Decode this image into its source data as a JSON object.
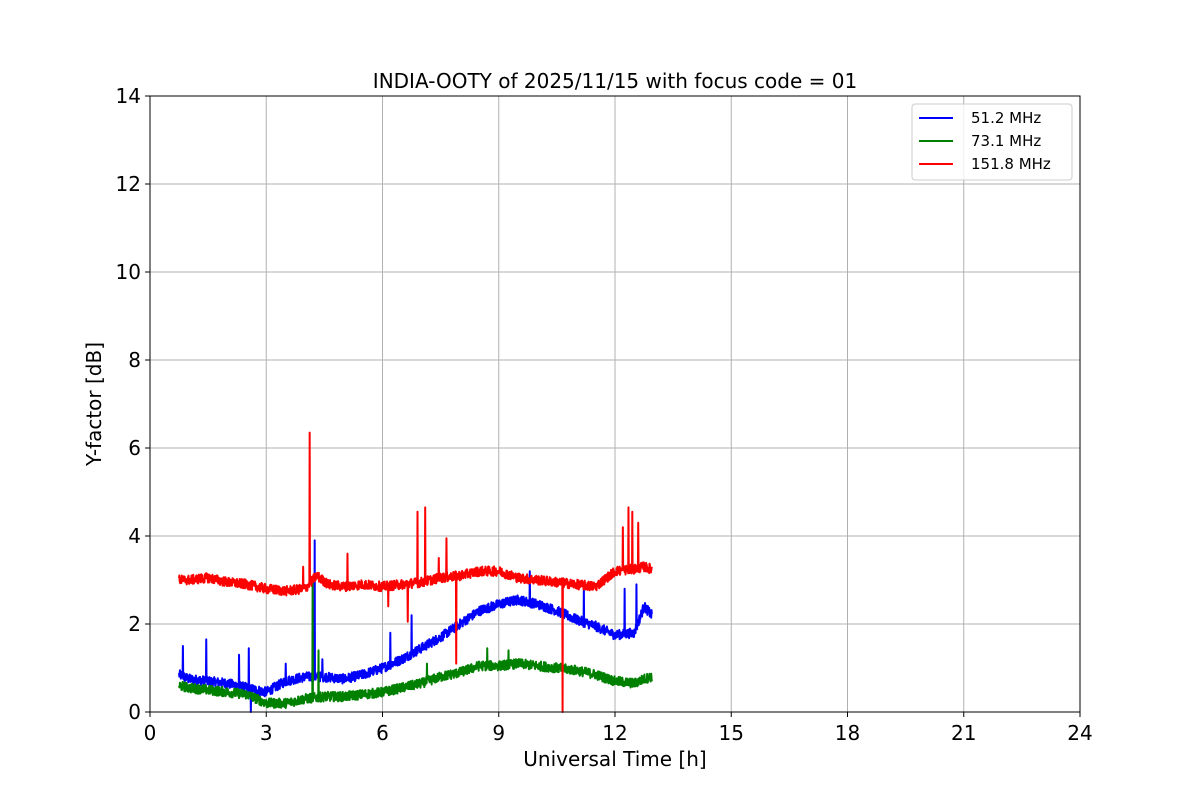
{
  "chart_data": {
    "type": "line",
    "title": "INDIA-OOTY of 2025/11/15 with focus code = 01",
    "xlabel": "Universal Time [h]",
    "ylabel": "Y-factor [dB]",
    "xlim": [
      0,
      24
    ],
    "ylim": [
      0,
      14
    ],
    "xticks": [
      0,
      3,
      6,
      9,
      12,
      15,
      18,
      21,
      24
    ],
    "yticks": [
      0,
      2,
      4,
      6,
      8,
      10,
      12,
      14
    ],
    "grid": true,
    "legend_position": "top-right",
    "series": [
      {
        "name": "51.2 MHz",
        "color": "#0000ff",
        "x": [
          0.75,
          1.0,
          1.5,
          2.0,
          2.5,
          3.0,
          3.5,
          4.0,
          4.5,
          5.0,
          5.5,
          6.0,
          6.5,
          7.0,
          7.5,
          8.0,
          8.5,
          9.0,
          9.5,
          10.0,
          10.5,
          11.0,
          11.5,
          12.0,
          12.5,
          12.75,
          12.95
        ],
        "values": [
          0.85,
          0.75,
          0.7,
          0.65,
          0.55,
          0.45,
          0.7,
          0.8,
          0.8,
          0.75,
          0.85,
          1.0,
          1.2,
          1.45,
          1.7,
          2.0,
          2.3,
          2.45,
          2.55,
          2.45,
          2.3,
          2.1,
          1.95,
          1.75,
          1.8,
          2.4,
          2.2
        ],
        "spikes": [
          {
            "x": 0.85,
            "y": 1.5
          },
          {
            "x": 1.45,
            "y": 1.65
          },
          {
            "x": 2.3,
            "y": 1.3
          },
          {
            "x": 2.55,
            "y": 1.45
          },
          {
            "x": 2.6,
            "y": 0.0
          },
          {
            "x": 3.5,
            "y": 1.1
          },
          {
            "x": 4.25,
            "y": 3.9
          },
          {
            "x": 4.45,
            "y": 1.2
          },
          {
            "x": 6.2,
            "y": 1.8
          },
          {
            "x": 6.75,
            "y": 2.2
          },
          {
            "x": 9.8,
            "y": 3.2
          },
          {
            "x": 11.2,
            "y": 2.8
          },
          {
            "x": 12.25,
            "y": 2.8
          },
          {
            "x": 12.55,
            "y": 2.9
          }
        ]
      },
      {
        "name": "73.1 MHz",
        "color": "#008000",
        "x": [
          0.75,
          1.0,
          1.5,
          2.0,
          2.5,
          3.0,
          3.5,
          4.0,
          4.5,
          5.0,
          5.5,
          6.0,
          6.5,
          7.0,
          7.5,
          8.0,
          8.5,
          9.0,
          9.5,
          10.0,
          10.5,
          11.0,
          11.5,
          12.0,
          12.5,
          12.75,
          12.95
        ],
        "values": [
          0.6,
          0.55,
          0.5,
          0.45,
          0.4,
          0.2,
          0.2,
          0.3,
          0.35,
          0.35,
          0.4,
          0.45,
          0.55,
          0.65,
          0.8,
          0.9,
          1.05,
          1.05,
          1.1,
          1.05,
          1.0,
          0.95,
          0.85,
          0.7,
          0.65,
          0.75,
          0.8
        ],
        "spikes": [
          {
            "x": 4.2,
            "y": 3.0
          },
          {
            "x": 4.35,
            "y": 1.4
          },
          {
            "x": 7.15,
            "y": 1.1
          },
          {
            "x": 8.7,
            "y": 1.45
          },
          {
            "x": 9.25,
            "y": 1.4
          }
        ]
      },
      {
        "name": "151.8 MHz",
        "color": "#ff0000",
        "x": [
          0.75,
          1.0,
          1.5,
          2.0,
          2.5,
          3.0,
          3.5,
          4.0,
          4.3,
          4.6,
          5.0,
          5.5,
          6.0,
          6.5,
          7.0,
          7.5,
          8.0,
          8.5,
          9.0,
          9.5,
          10.0,
          10.5,
          11.0,
          11.5,
          12.0,
          12.5,
          12.75,
          12.95
        ],
        "values": [
          3.0,
          3.0,
          3.05,
          2.95,
          2.9,
          2.8,
          2.75,
          2.8,
          3.1,
          2.9,
          2.85,
          2.9,
          2.85,
          2.9,
          2.95,
          3.05,
          3.1,
          3.2,
          3.2,
          3.05,
          3.0,
          2.95,
          2.9,
          2.85,
          3.2,
          3.25,
          3.3,
          3.25
        ],
        "spikes": [
          {
            "x": 3.95,
            "y": 3.3
          },
          {
            "x": 4.12,
            "y": 6.35
          },
          {
            "x": 5.1,
            "y": 3.6
          },
          {
            "x": 6.15,
            "y": 2.4
          },
          {
            "x": 6.65,
            "y": 2.05
          },
          {
            "x": 6.9,
            "y": 4.55
          },
          {
            "x": 7.1,
            "y": 4.65
          },
          {
            "x": 7.45,
            "y": 3.5
          },
          {
            "x": 7.65,
            "y": 3.95
          },
          {
            "x": 7.9,
            "y": 1.1
          },
          {
            "x": 10.65,
            "y": 0.0
          },
          {
            "x": 12.2,
            "y": 4.2
          },
          {
            "x": 12.35,
            "y": 4.65
          },
          {
            "x": 12.45,
            "y": 4.55
          },
          {
            "x": 12.6,
            "y": 4.3
          }
        ]
      }
    ]
  }
}
